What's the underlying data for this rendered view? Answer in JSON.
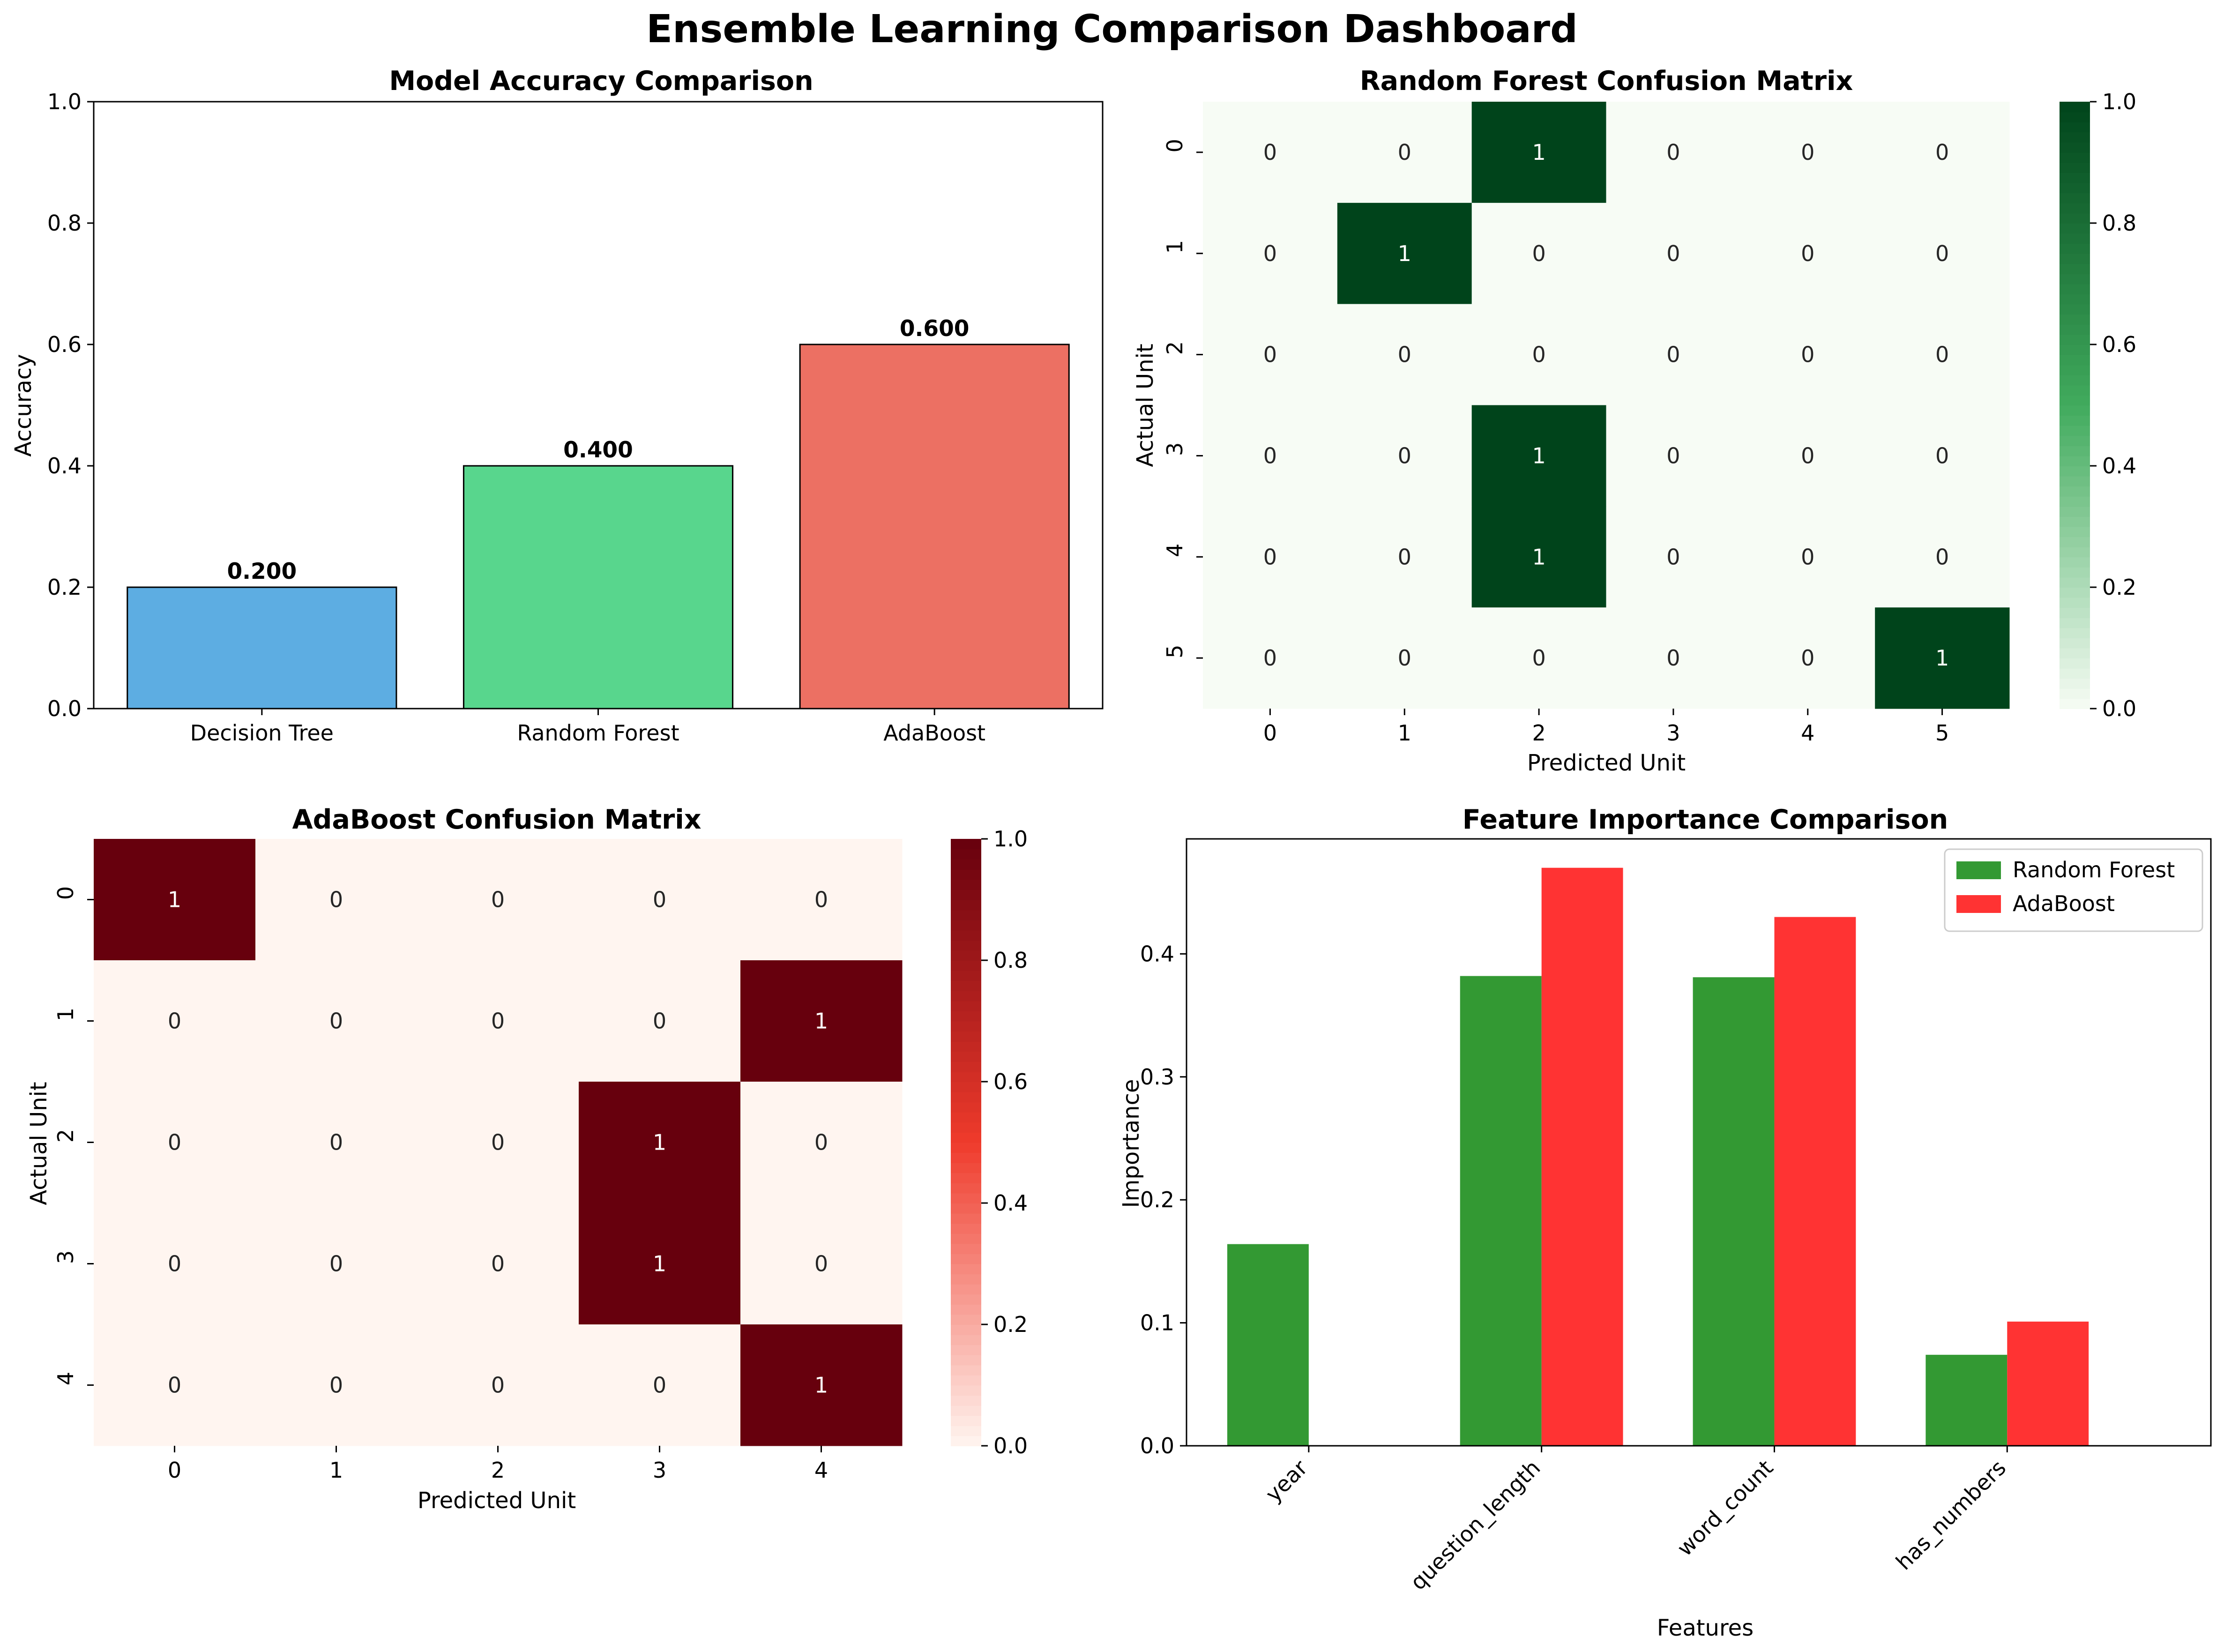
{
  "dashboard_title": "Ensemble Learning Comparison Dashboard",
  "chart_data": [
    {
      "id": "accuracy",
      "type": "bar",
      "title": "Model Accuracy Comparison",
      "xlabel": "",
      "ylabel": "Accuracy",
      "categories": [
        "Decision Tree",
        "Random Forest",
        "AdaBoost"
      ],
      "values": [
        0.2,
        0.4,
        0.6
      ],
      "data_labels": [
        "0.200",
        "0.400",
        "0.600"
      ],
      "colors": [
        "#5dade2",
        "#58d68d",
        "#ec7063"
      ],
      "ylim": [
        0,
        1.0
      ],
      "yticks": [
        0.0,
        0.2,
        0.4,
        0.6,
        0.8,
        1.0
      ],
      "ytick_labels": [
        "0.0",
        "0.2",
        "0.4",
        "0.6",
        "0.8",
        "1.0"
      ],
      "grid": false
    },
    {
      "id": "rf_confusion",
      "type": "heatmap",
      "title": "Random Forest Confusion Matrix",
      "xlabel": "Predicted Unit",
      "ylabel": "Actual Unit",
      "x_labels": [
        "0",
        "1",
        "2",
        "3",
        "4",
        "5"
      ],
      "y_labels": [
        "0",
        "1",
        "2",
        "3",
        "4",
        "5"
      ],
      "matrix": [
        [
          0,
          0,
          1,
          0,
          0,
          0
        ],
        [
          0,
          1,
          0,
          0,
          0,
          0
        ],
        [
          0,
          0,
          0,
          0,
          0,
          0
        ],
        [
          0,
          0,
          1,
          0,
          0,
          0
        ],
        [
          0,
          0,
          1,
          0,
          0,
          0
        ],
        [
          0,
          0,
          0,
          0,
          0,
          1
        ]
      ],
      "colormap": "Greens",
      "color_low": "#f7fcf5",
      "color_high": "#00441b",
      "colorbar_range": [
        0.0,
        1.0
      ],
      "colorbar_ticks": [
        "0.0",
        "0.2",
        "0.4",
        "0.6",
        "0.8",
        "1.0"
      ]
    },
    {
      "id": "ada_confusion",
      "type": "heatmap",
      "title": "AdaBoost Confusion Matrix",
      "xlabel": "Predicted Unit",
      "ylabel": "Actual Unit",
      "x_labels": [
        "0",
        "1",
        "2",
        "3",
        "4"
      ],
      "y_labels": [
        "0",
        "1",
        "2",
        "3",
        "4"
      ],
      "matrix": [
        [
          1,
          0,
          0,
          0,
          0
        ],
        [
          0,
          0,
          0,
          0,
          1
        ],
        [
          0,
          0,
          0,
          1,
          0
        ],
        [
          0,
          0,
          0,
          1,
          0
        ],
        [
          0,
          0,
          0,
          0,
          1
        ]
      ],
      "colormap": "Reds",
      "color_low": "#fff5f0",
      "color_high": "#67000d",
      "colorbar_range": [
        0.0,
        1.0
      ],
      "colorbar_ticks": [
        "0.0",
        "0.2",
        "0.4",
        "0.6",
        "0.8",
        "1.0"
      ]
    },
    {
      "id": "feature_importance",
      "type": "bar",
      "title": "Feature Importance Comparison",
      "xlabel": "Features",
      "ylabel": "Importance",
      "categories": [
        "year",
        "question_length",
        "word_count",
        "has_numbers"
      ],
      "series": [
        {
          "name": "Random Forest",
          "color": "#339933",
          "values": [
            0.164,
            0.382,
            0.381,
            0.074
          ]
        },
        {
          "name": "AdaBoost",
          "color": "#ff3333",
          "values": [
            0.0,
            0.47,
            0.43,
            0.101
          ]
        }
      ],
      "ylim": [
        0,
        0.4935
      ],
      "yticks": [
        0.0,
        0.1,
        0.2,
        0.3,
        0.4
      ],
      "ytick_labels": [
        "0.0",
        "0.1",
        "0.2",
        "0.3",
        "0.4"
      ],
      "legend_position": "top-right",
      "grid": false
    }
  ]
}
